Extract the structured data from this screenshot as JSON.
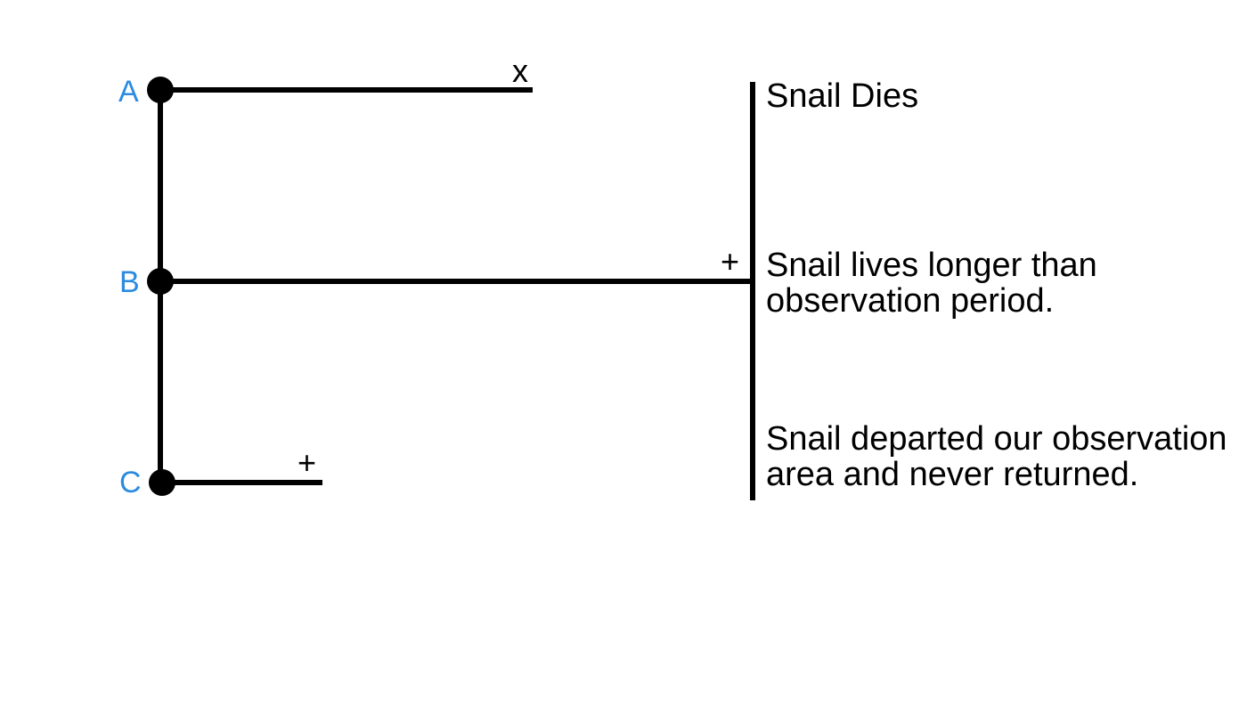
{
  "colors": {
    "node_label": "#2b8be0",
    "line": "#000000",
    "text": "#000000"
  },
  "subjects": [
    {
      "label": "A",
      "end_marker": "x"
    },
    {
      "label": "B",
      "end_marker": "+"
    },
    {
      "label": "C",
      "end_marker": "+"
    }
  ],
  "outcomes": [
    {
      "lines": [
        "Snail Dies"
      ]
    },
    {
      "lines": [
        "Snail lives longer than",
        "observation period."
      ]
    },
    {
      "lines": [
        "Snail departed our observation",
        "area and never returned."
      ]
    }
  ]
}
